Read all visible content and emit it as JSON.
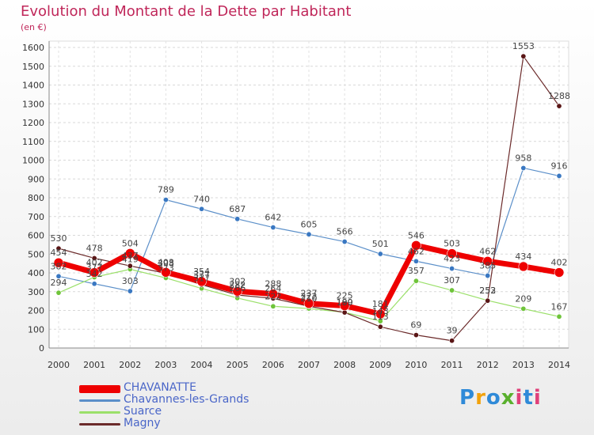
{
  "title": "Evolution du Montant de la Dette par Habitant",
  "unit_label": "(en €)",
  "brand": "Proxiti",
  "colors": {
    "CHAVANATTE": "#ee0000",
    "Chavannes-les-Grands": "#5b8fc9",
    "Suarce": "#9be06a",
    "Magny": "#6b2a2a",
    "title": "#c0275a"
  },
  "chart_data": {
    "type": "line",
    "title": "Evolution du Montant de la Dette par Habitant",
    "ylabel": "(en €)",
    "xlabel": "",
    "ylim": [
      0,
      1600
    ],
    "yticks": [
      0,
      100,
      200,
      300,
      400,
      500,
      600,
      700,
      800,
      900,
      1000,
      1100,
      1200,
      1300,
      1400,
      1500,
      1600
    ],
    "grid": true,
    "categories": [
      "2000",
      "2001",
      "2002",
      "2003",
      "2004",
      "2005",
      "2006",
      "2007",
      "2008",
      "2009",
      "2010",
      "2011",
      "2012",
      "2013",
      "2014"
    ],
    "series": [
      {
        "name": "CHAVANATTE",
        "values": [
          454,
          402,
          504,
          403,
          354,
          302,
          288,
          237,
          225,
          181,
          546,
          503,
          462,
          434,
          402
        ],
        "labels": [
          "454",
          "402",
          "504",
          "403",
          "354",
          "302",
          "288",
          "237",
          "225",
          "181",
          "546",
          "503",
          "462",
          "434",
          "402"
        ]
      },
      {
        "name": "Chavannes-les-Grands",
        "values": [
          382,
          342,
          303,
          789,
          740,
          687,
          642,
          605,
          566,
          501,
          462,
          423,
          385,
          958,
          916
        ],
        "labels": [
          "382",
          "342",
          "303",
          "789",
          "740",
          "687",
          "642",
          "605",
          "566",
          "501",
          "462",
          "423",
          "385",
          "958",
          "916"
        ]
      },
      {
        "name": "Suarce",
        "values": [
          294,
          377,
          419,
          373,
          317,
          266,
          222,
          210,
          190,
          143,
          357,
          307,
          253,
          209,
          167
        ],
        "labels": [
          "294",
          "377",
          "419",
          "373",
          "317",
          "266",
          "222",
          "210",
          "190",
          "143",
          "357",
          "307",
          "253",
          "209",
          "167"
        ]
      },
      {
        "name": "Magny",
        "values": [
          530,
          478,
          437,
          398,
          337,
          282,
          264,
          222,
          189,
          113,
          69,
          39,
          252,
          1553,
          1288
        ],
        "labels": [
          "530",
          "478",
          "437",
          "398",
          "337",
          "282",
          "264",
          "222",
          "189",
          "113",
          "69",
          "39",
          "252",
          "1553",
          "1288"
        ]
      }
    ]
  }
}
